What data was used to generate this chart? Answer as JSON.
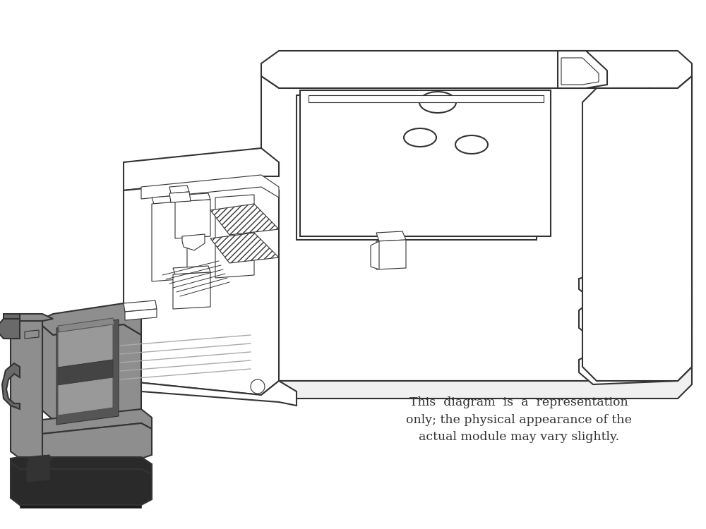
{
  "background_color": "#ffffff",
  "line_color": "#333333",
  "gray_dark": "#6a6a6a",
  "gray_mid": "#8e8e8e",
  "gray_light": "#b8b8b8",
  "white": "#ffffff",
  "annotation_lines": [
    "This  diagram  is  a  representation",
    "only; the physical appearance of the",
    "actual module may vary slightly."
  ],
  "fig_width": 10.0,
  "fig_height": 7.5,
  "dpi": 100
}
